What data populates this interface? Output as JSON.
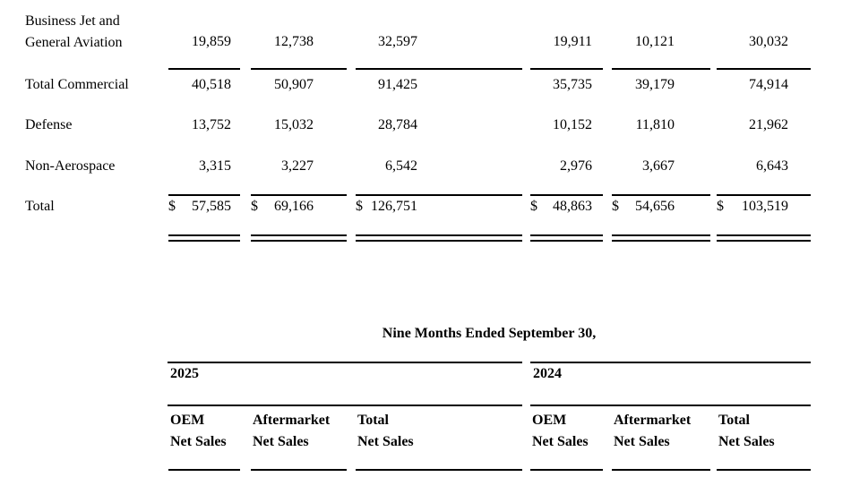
{
  "top_table": {
    "currency_symbol": "$",
    "rows": [
      {
        "label": "Business Jet and General Aviation",
        "values": [
          "19,859",
          "12,738",
          "32,597",
          "19,911",
          "10,121",
          "30,032"
        ]
      },
      {
        "label": "Total Commercial",
        "values": [
          "40,518",
          "50,907",
          "91,425",
          "35,735",
          "39,179",
          "74,914"
        ]
      },
      {
        "label": "Defense",
        "values": [
          "13,752",
          "15,032",
          "28,784",
          "10,152",
          "11,810",
          "21,962"
        ]
      },
      {
        "label": "Non-Aerospace",
        "values": [
          "3,315",
          "3,227",
          "6,542",
          "2,976",
          "3,667",
          "6,643"
        ]
      },
      {
        "label": "Total",
        "values": [
          "57,585",
          "69,166",
          "126,751",
          "48,863",
          "54,656",
          "103,519"
        ]
      }
    ]
  },
  "bottom_table": {
    "title": "Nine Months Ended September 30,",
    "year_groups": [
      {
        "year": "2025",
        "columns": [
          {
            "line1": "OEM",
            "line2": "Net Sales"
          },
          {
            "line1": "Aftermarket",
            "line2": "Net Sales"
          },
          {
            "line1": "Total",
            "line2": "Net Sales"
          }
        ]
      },
      {
        "year": "2024",
        "columns": [
          {
            "line1": "OEM",
            "line2": "Net Sales"
          },
          {
            "line1": "Aftermarket",
            "line2": "Net Sales"
          },
          {
            "line1": "Total",
            "line2": "Net Sales"
          }
        ]
      }
    ]
  },
  "colors": {
    "text": "#000000",
    "rule": "#000000",
    "background": "#ffffff"
  }
}
